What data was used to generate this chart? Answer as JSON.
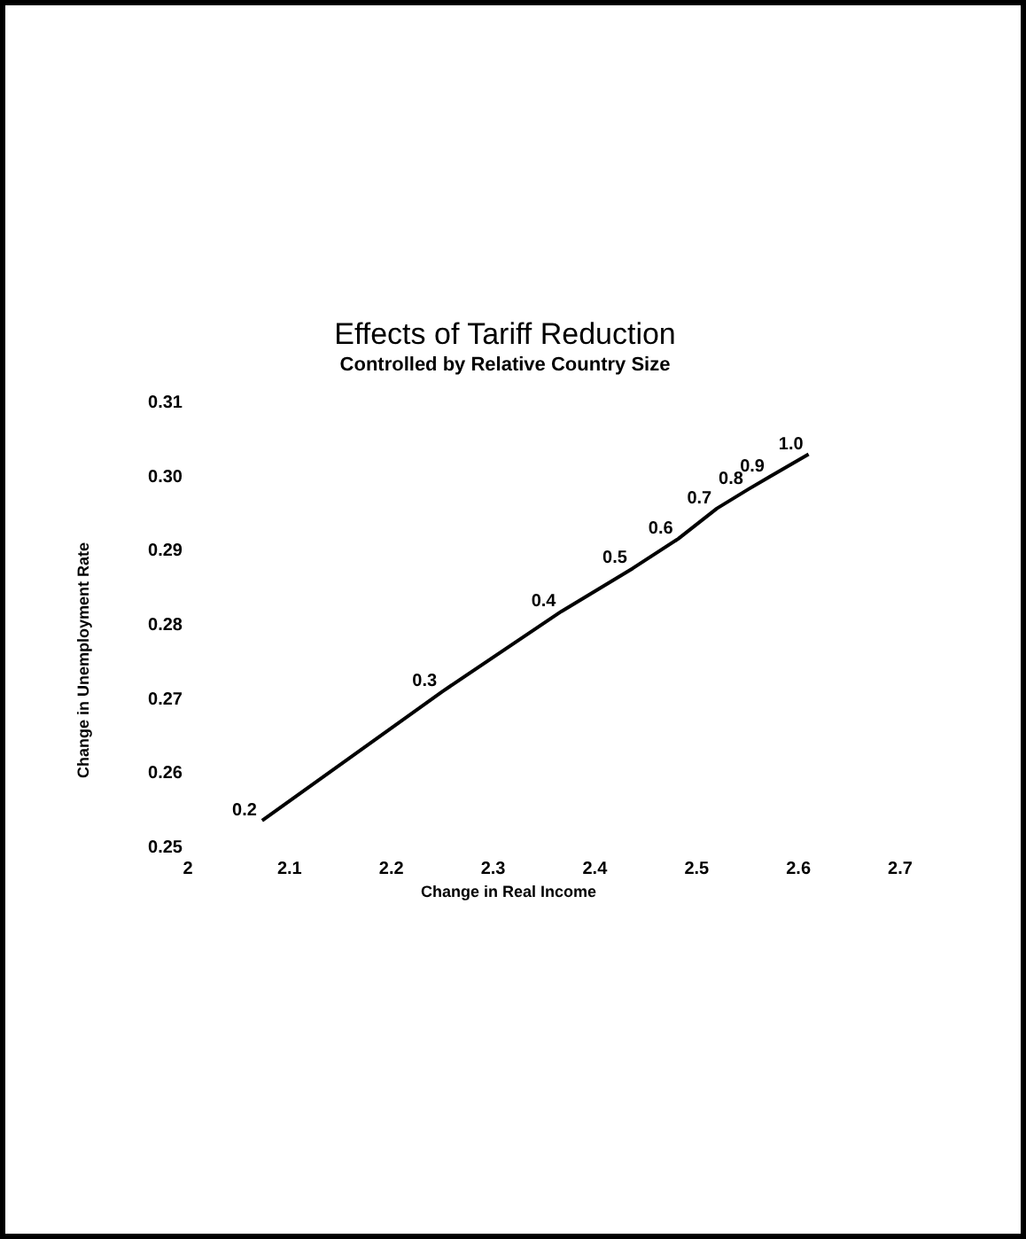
{
  "chart_data": {
    "type": "line",
    "title": "Effects of Tariff Reduction",
    "subtitle": "Controlled by Relative Country Size",
    "xlabel": "Change in Real Income",
    "ylabel": "Change in Unemployment Rate",
    "x": [
      2.073,
      2.25,
      2.367,
      2.437,
      2.482,
      2.52,
      2.551,
      2.572,
      2.61
    ],
    "values": [
      0.2536,
      0.271,
      0.2818,
      0.2876,
      0.2916,
      0.2957,
      0.2983,
      0.3,
      0.303
    ],
    "color": "#000000",
    "marker": "none",
    "line_style": "solid",
    "grid": false,
    "xlim": [
      2,
      2.7
    ],
    "xticks": [
      2,
      2.1,
      2.2,
      2.3,
      2.4,
      2.5,
      2.6,
      2.7
    ],
    "ylim": [
      0.25,
      0.31
    ],
    "yticks": [
      0.25,
      0.26,
      0.27,
      0.28,
      0.29,
      {
        "value": 0.3,
        "label": "0.30"
      },
      0.31
    ],
    "annotations": [
      {
        "text": "0.2",
        "x": 2.073,
        "y": 0.2536
      },
      {
        "text": "0.3",
        "x": 2.25,
        "y": 0.271
      },
      {
        "text": "0.4",
        "x": 2.367,
        "y": 0.2818
      },
      {
        "text": "0.5",
        "x": 2.437,
        "y": 0.2876
      },
      {
        "text": "0.6",
        "x": 2.482,
        "y": 0.2916
      },
      {
        "text": "0.7",
        "x": 2.52,
        "y": 0.2957
      },
      {
        "text": "0.8",
        "x": 2.551,
        "y": 0.2983
      },
      {
        "text": "0.9",
        "x": 2.572,
        "y": 0.3
      },
      {
        "text": "1.0",
        "x": 2.61,
        "y": 0.303
      }
    ]
  }
}
